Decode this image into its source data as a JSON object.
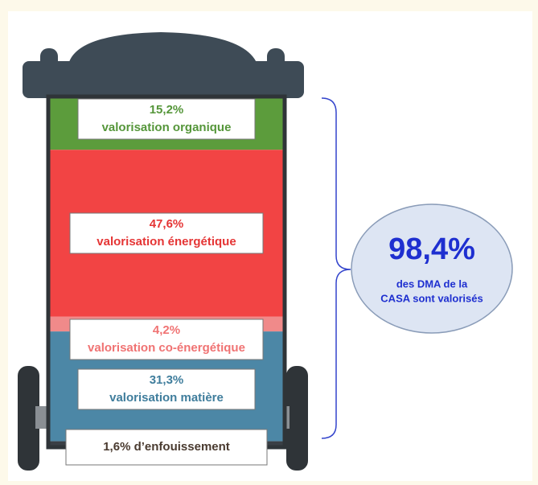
{
  "chart_data": {
    "type": "bin",
    "categories": [
      "valorisation organique",
      "valorisation énergétique",
      "valorisation co-énergétique",
      "valorisation matière",
      "d’enfouissement"
    ],
    "values": [
      15.2,
      47.6,
      4.2,
      31.3,
      1.6
    ],
    "value_labels": [
      "15,2%",
      "47,6%",
      "4,2%",
      "31,3%",
      "1,6%"
    ],
    "colors": [
      "#5c9c3c",
      "#f24444",
      "#f08a8a",
      "#4c87a6",
      "#3a3f45"
    ],
    "text_colors": [
      "#55963a",
      "#e53535",
      "#f07373",
      "#3f7d9c",
      "#4a3b30"
    ],
    "total": {
      "value": 98.4,
      "label": "98,4%",
      "text": [
        "des DMA de la",
        "CASA sont valorisés"
      ]
    }
  }
}
